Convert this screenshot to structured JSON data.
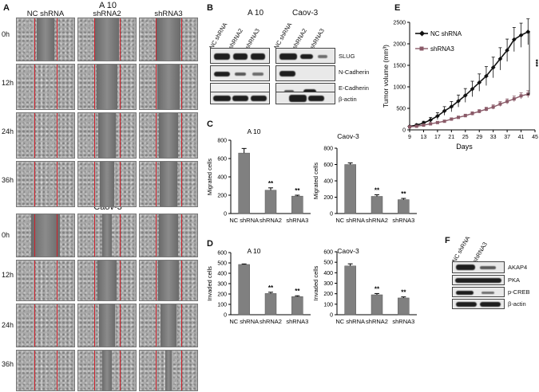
{
  "panel_letters": {
    "a": "A",
    "b": "B",
    "c": "C",
    "d": "D",
    "e": "E",
    "f": "F"
  },
  "panelA": {
    "top_title": "A 10",
    "bottom_title": "Caov-3",
    "columns": [
      "NC shRNA",
      "shRNA2",
      "shRNA3"
    ],
    "rows": [
      "0h",
      "12h",
      "24h",
      "36h"
    ]
  },
  "panelB": {
    "cell_lines": [
      "A 10",
      "Caov-3"
    ],
    "lanes": [
      "NC shRNA",
      "shRNA2",
      "shRNA3"
    ],
    "proteins": [
      "SLUG",
      "N-Cadherin",
      "E-Cadherin",
      "β-actin"
    ]
  },
  "panelE": {
    "legend": [
      "NC shRNA",
      "shRNA3"
    ],
    "significance": "***",
    "series_colors": [
      "#111111",
      "#8a5a68"
    ]
  },
  "panelF": {
    "lanes": [
      "NC shRNA",
      "shRNA3"
    ],
    "proteins": [
      "AKAP4",
      "PKA",
      "p-CREB",
      "β-actin"
    ]
  },
  "chart_data": [
    {
      "type": "bar",
      "panel": "C",
      "title": "A 10",
      "ylabel": "Migrated cells",
      "categories": [
        "NC shRNA",
        "shRNA2",
        "shRNA3"
      ],
      "values": [
        660,
        255,
        190
      ],
      "errors": [
        50,
        25,
        10
      ],
      "significance": [
        "",
        "**",
        "**"
      ],
      "ylim": [
        0,
        800
      ],
      "yticks": [
        0,
        200,
        400,
        600,
        800
      ]
    },
    {
      "type": "bar",
      "panel": "C",
      "title": "Caov-3",
      "ylabel": "Migrated cells",
      "categories": [
        "NC shRNA",
        "shRNA2",
        "shRNA3"
      ],
      "values": [
        600,
        210,
        170
      ],
      "errors": [
        20,
        20,
        15
      ],
      "significance": [
        "",
        "**",
        "**"
      ],
      "ylim": [
        0,
        800
      ],
      "yticks": [
        0,
        200,
        400,
        600,
        800
      ]
    },
    {
      "type": "bar",
      "panel": "D",
      "title": "A 10",
      "ylabel": "Invaded cells",
      "categories": [
        "NC shRNA",
        "shRNA2",
        "shRNA3"
      ],
      "values": [
        485,
        205,
        175
      ],
      "errors": [
        5,
        12,
        8
      ],
      "significance": [
        "",
        "**",
        "**"
      ],
      "ylim": [
        0,
        600
      ],
      "yticks": [
        0,
        100,
        200,
        300,
        400,
        500,
        600
      ]
    },
    {
      "type": "bar",
      "panel": "D",
      "title": "Caov-3",
      "ylabel": "Invaded cells",
      "categories": [
        "NC shRNA",
        "shRNA2",
        "shRNA3"
      ],
      "values": [
        465,
        190,
        160
      ],
      "errors": [
        20,
        12,
        10
      ],
      "significance": [
        "",
        "**",
        "**"
      ],
      "ylim": [
        0,
        600
      ],
      "yticks": [
        0,
        100,
        200,
        300,
        400,
        500,
        600
      ]
    },
    {
      "type": "line",
      "panel": "E",
      "title": "",
      "xlabel": "Days",
      "ylabel": "Tumor volume (mm³)",
      "x": [
        9,
        11,
        13,
        15,
        17,
        19,
        21,
        23,
        25,
        27,
        29,
        31,
        33,
        35,
        37,
        39,
        41,
        43
      ],
      "xticks": [
        9,
        13,
        17,
        21,
        25,
        29,
        33,
        37,
        41,
        45
      ],
      "ylim": [
        0,
        2500
      ],
      "yticks": [
        0,
        500,
        1000,
        1500,
        2000,
        2500
      ],
      "xlim": [
        9,
        45
      ],
      "series": [
        {
          "name": "NC shRNA",
          "values": [
            80,
            110,
            160,
            230,
            320,
            440,
            540,
            670,
            800,
            950,
            1100,
            1250,
            1450,
            1650,
            1850,
            2100,
            2200,
            2280
          ],
          "errors": [
            20,
            30,
            40,
            60,
            80,
            100,
            120,
            140,
            160,
            180,
            200,
            220,
            240,
            260,
            260,
            280,
            280,
            300
          ]
        },
        {
          "name": "shRNA3",
          "values": [
            70,
            85,
            110,
            140,
            170,
            200,
            250,
            290,
            330,
            380,
            430,
            480,
            530,
            600,
            660,
            720,
            790,
            830
          ],
          "errors": [
            10,
            10,
            15,
            20,
            20,
            25,
            30,
            30,
            35,
            40,
            40,
            45,
            50,
            55,
            60,
            65,
            70,
            80
          ]
        }
      ]
    }
  ]
}
